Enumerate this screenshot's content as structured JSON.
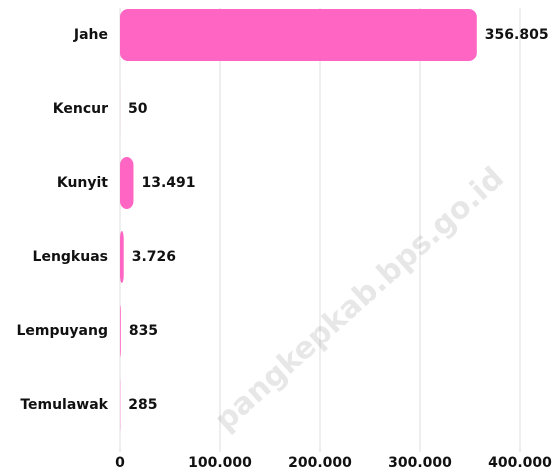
{
  "chart_data": {
    "type": "barh",
    "categories": [
      "Jahe",
      "Kencur",
      "Kunyit",
      "Lengkuas",
      "Lempuyang",
      "Temulawak"
    ],
    "values": [
      356805,
      50,
      13491,
      3726,
      835,
      285
    ],
    "value_labels": [
      "356.805",
      "50",
      "13.491",
      "3.726",
      "835",
      "285"
    ],
    "color": "#ff66c4",
    "xlim": [
      0,
      400000
    ],
    "xticks": [
      0,
      {
        "value": 100000,
        "label": "100.000"
      },
      {
        "value": 200000,
        "label": "200.000"
      },
      {
        "value": 300000,
        "label": "300.000"
      },
      {
        "value": 400000,
        "label": "400.000"
      }
    ],
    "grid": true,
    "watermark": "pangkepkab.bps.go.id"
  }
}
